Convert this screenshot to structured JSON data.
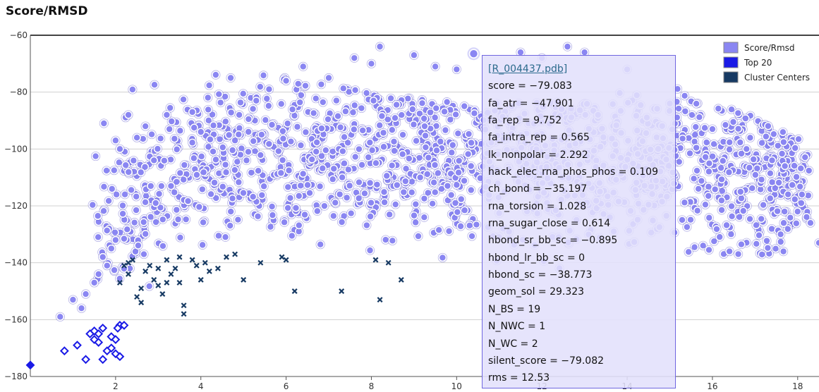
{
  "title": "Score/RMSD",
  "chart_data": {
    "type": "scatter",
    "title": "Score/RMSD",
    "xlabel": "",
    "ylabel": "",
    "xlim": [
      0,
      18.5
    ],
    "ylim": [
      -180,
      -60
    ],
    "x_ticks": [
      "2",
      "4",
      "6",
      "8",
      "10",
      "12",
      "14",
      "16",
      "18"
    ],
    "y_ticks": [
      "-60",
      "-80",
      "-100",
      "-120",
      "-140",
      "-160",
      "-180"
    ],
    "grid": "horizontal",
    "legend_position": "top-right",
    "legend": [
      "Score/Rmsd",
      "Top 20",
      "Cluster Centers"
    ],
    "colors": {
      "score": "#8a86f2",
      "top20": "#1a1ae6",
      "cluster": "#173a63",
      "hover": "#8a86f2"
    },
    "series": [
      {
        "name": "Top 20",
        "marker": "diamond",
        "points": [
          [
            0.0,
            -176
          ],
          [
            0.8,
            -171
          ],
          [
            1.1,
            -169
          ],
          [
            1.3,
            -174
          ],
          [
            1.5,
            -167
          ],
          [
            1.5,
            -164
          ],
          [
            1.6,
            -168
          ],
          [
            1.6,
            -165
          ],
          [
            1.7,
            -174
          ],
          [
            1.8,
            -171
          ],
          [
            1.9,
            -170
          ],
          [
            1.9,
            -166
          ],
          [
            2.0,
            -172
          ],
          [
            2.0,
            -167
          ],
          [
            2.1,
            -173
          ],
          [
            2.1,
            -162
          ],
          [
            2.2,
            -162
          ],
          [
            1.7,
            -163
          ],
          [
            1.4,
            -165
          ],
          [
            2.05,
            -163
          ]
        ]
      },
      {
        "name": "Cluster Centers",
        "marker": "x",
        "points": [
          [
            2.2,
            -141
          ],
          [
            2.3,
            -144
          ],
          [
            2.1,
            -147
          ],
          [
            2.4,
            -139
          ],
          [
            2.5,
            -152
          ],
          [
            2.6,
            -149
          ],
          [
            2.7,
            -143
          ],
          [
            2.8,
            -141
          ],
          [
            2.9,
            -146
          ],
          [
            3.0,
            -142
          ],
          [
            3.0,
            -148
          ],
          [
            3.1,
            -151
          ],
          [
            3.2,
            -139
          ],
          [
            3.3,
            -144
          ],
          [
            3.4,
            -142
          ],
          [
            3.5,
            -138
          ],
          [
            3.5,
            -147
          ],
          [
            3.6,
            -155
          ],
          [
            3.6,
            -158
          ],
          [
            3.8,
            -139
          ],
          [
            3.9,
            -141
          ],
          [
            4.0,
            -146
          ],
          [
            4.1,
            -140
          ],
          [
            4.2,
            -143
          ],
          [
            4.4,
            -142
          ],
          [
            4.6,
            -138
          ],
          [
            4.8,
            -137
          ],
          [
            5.0,
            -146
          ],
          [
            5.4,
            -140
          ],
          [
            5.9,
            -138
          ],
          [
            6.0,
            -139
          ],
          [
            6.2,
            -150
          ],
          [
            7.3,
            -150
          ],
          [
            8.1,
            -139
          ],
          [
            8.2,
            -153
          ],
          [
            8.4,
            -140
          ],
          [
            8.7,
            -146
          ],
          [
            2.3,
            -140
          ],
          [
            2.6,
            -154
          ],
          [
            3.2,
            -147
          ]
        ]
      },
      {
        "name": "Score/Rmsd",
        "marker": "circle",
        "generated": true,
        "points": [
          [
            0.7,
            -159
          ],
          [
            1.0,
            -153
          ],
          [
            1.2,
            -156
          ],
          [
            1.3,
            -151
          ],
          [
            1.5,
            -147
          ],
          [
            1.6,
            -144
          ],
          [
            1.7,
            -138
          ],
          [
            1.8,
            -141
          ],
          [
            1.9,
            -135
          ],
          [
            2.0,
            -132
          ],
          [
            2.0,
            -97
          ],
          [
            2.1,
            -100
          ],
          [
            2.3,
            -88
          ],
          [
            2.5,
            -96
          ],
          [
            2.7,
            -92
          ],
          [
            2.9,
            -104
          ],
          [
            3.2,
            -88
          ],
          [
            3.3,
            -113
          ],
          [
            3.8,
            -87
          ],
          [
            4.0,
            -94
          ],
          [
            4.7,
            -75
          ],
          [
            4.9,
            -88
          ],
          [
            5.3,
            -83
          ],
          [
            5.6,
            -79
          ],
          [
            6.0,
            -76
          ],
          [
            6.4,
            -71
          ],
          [
            7.0,
            -75
          ],
          [
            7.6,
            -68
          ],
          [
            8.0,
            -70
          ],
          [
            8.2,
            -64
          ],
          [
            9.0,
            -67
          ],
          [
            9.5,
            -71
          ],
          [
            10.0,
            -72
          ],
          [
            11.5,
            -66
          ],
          [
            12.0,
            -68
          ],
          [
            12.6,
            -64
          ],
          [
            13.0,
            -66
          ],
          [
            14.0,
            -72
          ],
          [
            15.0,
            -84
          ],
          [
            16.0,
            -93
          ],
          [
            16.8,
            -100
          ],
          [
            17.4,
            -104
          ],
          [
            17.7,
            -106
          ],
          [
            18.1,
            -116
          ],
          [
            18.3,
            -126
          ],
          [
            18.5,
            -133
          ],
          [
            17.6,
            -130
          ],
          [
            16.4,
            -136
          ]
        ]
      }
    ],
    "hover_point": [
      10.4,
      -66.5
    ]
  },
  "tooltip": {
    "link": "[R_004437.pdb]",
    "lines": [
      "score = −79.083",
      "fa_atr = −47.901",
      "fa_rep = 9.752",
      "fa_intra_rep = 0.565",
      "lk_nonpolar = 2.292",
      "hack_elec_rna_phos_phos = 0.109",
      "ch_bond = −35.197",
      "rna_torsion = 1.028",
      "rna_sugar_close = 0.614",
      "hbond_sr_bb_sc = −0.895",
      "hbond_lr_bb_sc = 0",
      "hbond_sc = −38.773",
      "geom_sol = 29.323",
      "N_BS = 19",
      "N_NWC = 1",
      "N_WC = 2",
      "silent_score = −79.082",
      "rms = 12.53"
    ]
  }
}
